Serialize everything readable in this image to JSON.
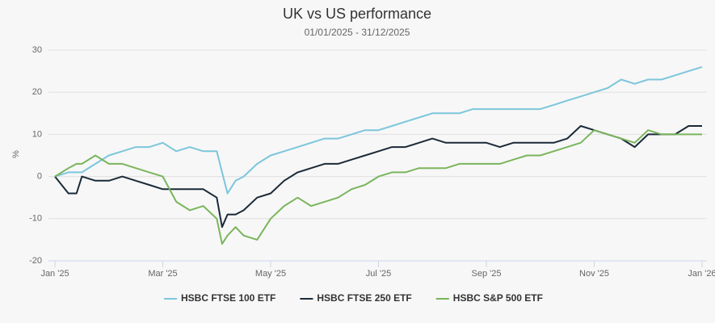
{
  "chart_data": {
    "type": "line",
    "title": "UK vs US performance",
    "subtitle": "01/01/2025 - 31/12/2025",
    "y_label": "%",
    "x": [
      0,
      0.25,
      0.4,
      0.5,
      0.75,
      1,
      1.25,
      1.5,
      1.75,
      2,
      2.25,
      2.5,
      2.75,
      3,
      3.1,
      3.2,
      3.35,
      3.5,
      3.75,
      4,
      4.25,
      4.5,
      4.75,
      5,
      5.25,
      5.5,
      5.75,
      6,
      6.25,
      6.5,
      6.75,
      7,
      7.25,
      7.5,
      7.75,
      8,
      8.25,
      8.5,
      8.75,
      9,
      9.25,
      9.5,
      9.75,
      10,
      10.25,
      10.5,
      10.75,
      11,
      11.25,
      11.5,
      11.75,
      12
    ],
    "series": [
      {
        "name": "HSBC FTSE 100 ETF",
        "color": "#7cc6dc",
        "values": [
          0,
          1,
          1,
          1,
          3,
          5,
          6,
          7,
          7,
          8,
          6,
          7,
          6,
          6,
          1,
          -4,
          -1,
          0,
          3,
          5,
          6,
          7,
          8,
          9,
          9,
          10,
          11,
          11,
          12,
          13,
          14,
          15,
          15,
          15,
          16,
          16,
          16,
          16,
          16,
          16,
          17,
          18,
          19,
          20,
          21,
          23,
          22,
          23,
          23,
          24,
          25,
          26
        ]
      },
      {
        "name": "HSBC FTSE 250 ETF",
        "color": "#1b2a38",
        "values": [
          0,
          -4,
          -4,
          0,
          -1,
          -1,
          0,
          -1,
          -2,
          -3,
          -3,
          -3,
          -3,
          -5,
          -12,
          -9,
          -9,
          -8,
          -5,
          -4,
          -1,
          1,
          2,
          3,
          3,
          4,
          5,
          6,
          7,
          7,
          8,
          9,
          8,
          8,
          8,
          8,
          7,
          8,
          8,
          8,
          8,
          9,
          12,
          11,
          10,
          9,
          7,
          10,
          10,
          10,
          12,
          12
        ]
      },
      {
        "name": "HSBC S&P 500 ETF",
        "color": "#7ab55c",
        "values": [
          0,
          2,
          3,
          3,
          5,
          3,
          3,
          2,
          1,
          0,
          -6,
          -8,
          -7,
          -10,
          -16,
          -14,
          -12,
          -14,
          -15,
          -10,
          -7,
          -5,
          -7,
          -6,
          -5,
          -3,
          -2,
          0,
          1,
          1,
          2,
          2,
          2,
          3,
          3,
          3,
          3,
          4,
          5,
          5,
          6,
          7,
          8,
          11,
          10,
          9,
          8,
          11,
          10,
          10,
          10,
          10
        ]
      }
    ],
    "xlim": [
      -0.12,
      12.09
    ],
    "xticks": [
      {
        "value": 0,
        "label": "Jan '25"
      },
      {
        "value": 2,
        "label": "Mar '25"
      },
      {
        "value": 4,
        "label": "May '25"
      },
      {
        "value": 6,
        "label": "Jul '25"
      },
      {
        "value": 8,
        "label": "Sep '25"
      },
      {
        "value": 10,
        "label": "Nov '25"
      },
      {
        "value": 12,
        "label": "Jan '26"
      }
    ],
    "ylim": [
      -20,
      30
    ],
    "yticks": [
      -20,
      -10,
      0,
      10,
      20,
      30
    ],
    "grid": true,
    "legend": "bottom"
  }
}
